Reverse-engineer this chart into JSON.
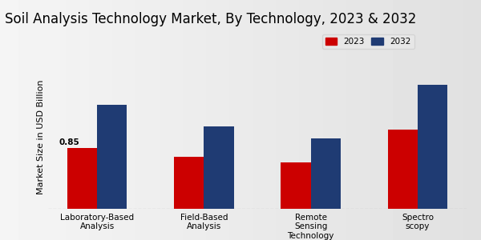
{
  "title": "Soil Analysis Technology Market, By Technology, 2023 & 2032",
  "ylabel": "Market Size in USD Billion",
  "categories": [
    "Laboratory-Based\nAnalysis",
    "Field-Based\nAnalysis",
    "Remote\nSensing\nTechnology",
    "Spectro\nscopy"
  ],
  "values_2023": [
    0.85,
    0.72,
    0.65,
    1.1
  ],
  "values_2032": [
    1.45,
    1.15,
    0.98,
    1.72
  ],
  "color_2023": "#cc0000",
  "color_2032": "#1f3b73",
  "annotation_val": "0.85",
  "background_color_light": "#f0f0f0",
  "background_color_dark": "#d8d8d8",
  "bar_width": 0.28,
  "legend_labels": [
    "2023",
    "2032"
  ],
  "title_fontsize": 12,
  "ylabel_fontsize": 8,
  "tick_fontsize": 7.5,
  "red_bar_color": "#cc0000",
  "red_bar_height": 0.03
}
